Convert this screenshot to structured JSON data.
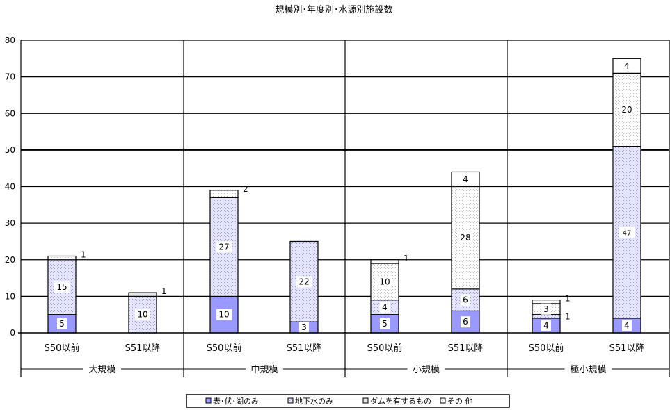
{
  "chart_data": {
    "type": "bar",
    "stacked": true,
    "title": "規模別･年度別･水源別施設数",
    "xlabel": "",
    "ylabel": "",
    "ylim": [
      0,
      80
    ],
    "yticks": [
      0,
      10,
      20,
      30,
      40,
      50,
      60,
      70,
      80
    ],
    "grid": true,
    "legend_position": "bottom",
    "groups": [
      "大規模",
      "中規模",
      "小規模",
      "極小規模"
    ],
    "categories": [
      "S50以前",
      "S51以降",
      "S50以前",
      "S51以降",
      "S50以前",
      "S51以降",
      "S50以前",
      "S51以降"
    ],
    "series": [
      {
        "name": "表･伏･湖のみ",
        "values": [
          5,
          0,
          10,
          3,
          5,
          6,
          4,
          4
        ],
        "labels": [
          "5",
          "",
          "10",
          "3",
          "5",
          "6",
          "4",
          "4"
        ],
        "color": "#9999ff"
      },
      {
        "name": "地下水のみ",
        "values": [
          15,
          10,
          27,
          22,
          4,
          6,
          1,
          47
        ],
        "labels": [
          "15",
          "10",
          "27",
          "22",
          "4",
          "6",
          "1",
          "47"
        ],
        "color": "#d4d4ee"
      },
      {
        "name": "ダムを有するもの",
        "values": [
          0,
          1,
          0,
          0,
          0,
          0,
          0,
          0
        ],
        "labels": [
          "",
          "1",
          "",
          "",
          "",
          "",
          "",
          ""
        ],
        "color": "#e6e6e6"
      },
      {
        "name": "その 他",
        "values": [
          1,
          0,
          2,
          0,
          10,
          28,
          3,
          20
        ],
        "labels": [
          "1",
          "",
          "2",
          "",
          "10",
          "28",
          "3",
          "20"
        ],
        "color": "#f0f0f0"
      },
      {
        "name": "",
        "values": [
          0,
          0,
          0,
          0,
          1,
          4,
          1,
          4
        ],
        "labels": [
          "",
          "",
          "",
          "",
          "1",
          "4",
          "1",
          "4"
        ],
        "color": "#ffffff"
      }
    ]
  }
}
